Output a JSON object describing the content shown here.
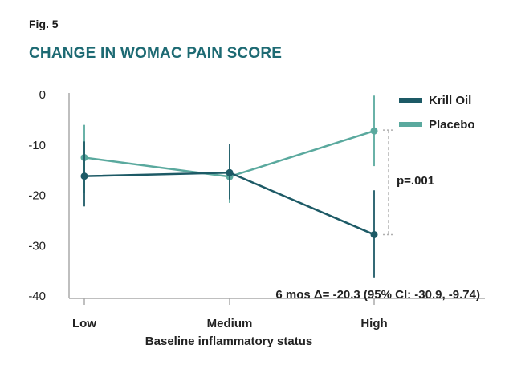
{
  "figure": {
    "label": "Fig. 5",
    "title": "CHANGE IN WOMAC PAIN SCORE"
  },
  "chart_data": {
    "type": "line",
    "categories": [
      "Low",
      "Medium",
      "High"
    ],
    "xlabel": "Baseline inflammatory status",
    "ylabel": "",
    "ylim": [
      -40,
      0
    ],
    "yticks": [
      0,
      -10,
      -20,
      -30,
      -40
    ],
    "grid": false,
    "legend_position": "top-right",
    "series": [
      {
        "name": "Krill Oil",
        "color": "#1d5a66",
        "values": [
          -16.2,
          -15.5,
          -27.8
        ],
        "err_low": [
          -22.2,
          -20.8,
          -36.3
        ],
        "err_high": [
          -9.3,
          -9.8,
          -19.0
        ]
      },
      {
        "name": "Placebo",
        "color": "#5aa99e",
        "values": [
          -12.5,
          -16.3,
          -7.2
        ],
        "err_low": [
          -19.5,
          -21.5,
          -14.2
        ],
        "err_high": [
          -6.0,
          -11.0,
          -0.2
        ]
      }
    ],
    "annotations": {
      "pvalue": "p=.001",
      "effect": "6 mos Δ= -20.3 (95% CI: -30.9, -9.74)"
    }
  }
}
